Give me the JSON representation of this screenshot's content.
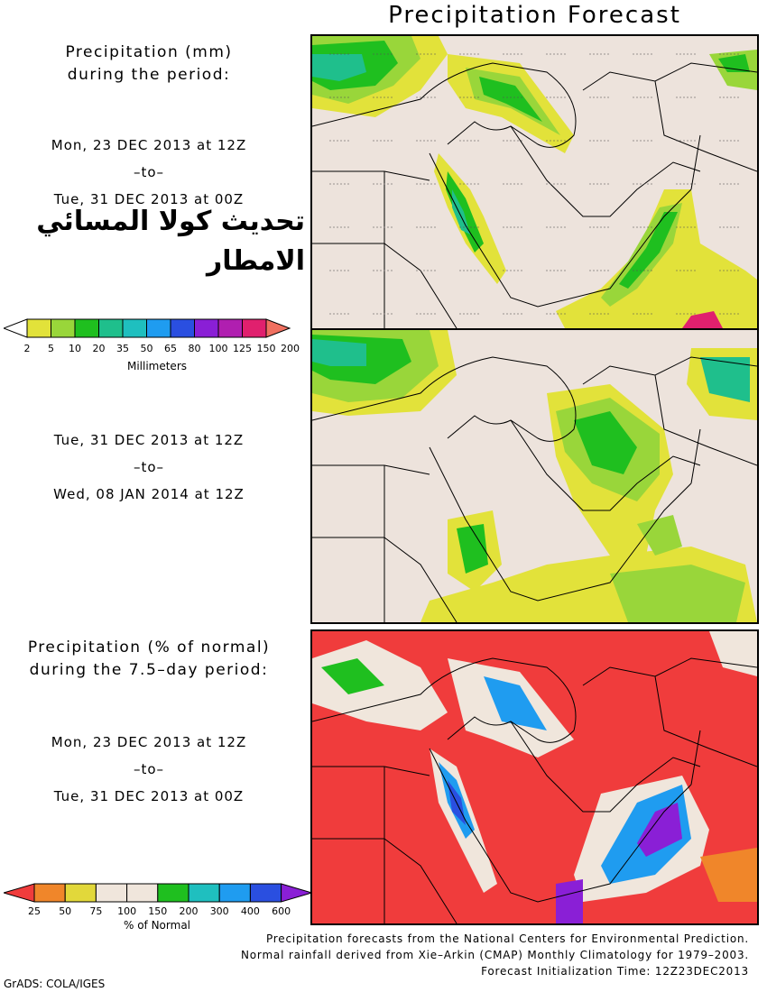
{
  "title": "Precipitation Forecast",
  "left": {
    "amount_heading_1": "Precipitation (mm)",
    "amount_heading_2": "during the period:",
    "period1": {
      "from": "Mon, 23 DEC 2013 at 12Z",
      "sep": "–to–",
      "to": "Tue, 31 DEC 2013 at 00Z"
    },
    "arabic_line1": "تحديث كولا المسائي",
    "arabic_line2": "الامطار",
    "period2": {
      "from": "Tue, 31 DEC 2013 at 12Z",
      "sep": "–to–",
      "to": "Wed, 08 JAN 2014 at 12Z"
    },
    "pct_heading_1": "Precipitation (% of normal)",
    "pct_heading_2": "during the 7.5–day period:",
    "period3": {
      "from": "Mon, 23 DEC 2013 at 12Z",
      "sep": "–to–",
      "to": "Tue, 31 DEC 2013 at 00Z"
    }
  },
  "legend_mm": {
    "unit": "Millimeters",
    "labels": [
      "2",
      "5",
      "10",
      "20",
      "35",
      "50",
      "65",
      "80",
      "100",
      "125",
      "150",
      "200"
    ],
    "colors": [
      "#ffffff",
      "#e2e23a",
      "#99d63a",
      "#1fbf1f",
      "#1fbf8c",
      "#1fbfbf",
      "#1f9cf0",
      "#2a4fe0",
      "#8a1fd6",
      "#b01fb0",
      "#e0206e",
      "#f07060"
    ]
  },
  "legend_pct": {
    "unit": "% of Normal",
    "labels": [
      "25",
      "50",
      "75",
      "100",
      "150",
      "200",
      "300",
      "400",
      "600"
    ],
    "colors": [
      "#f03c3c",
      "#f0862a",
      "#e2d83a",
      "#f0e6dc",
      "#f0e6dc",
      "#1fbf1f",
      "#1fbfbf",
      "#1f9cf0",
      "#2a4fe0",
      "#8a1fd6"
    ]
  },
  "map_colors": {
    "land": "#ede3dc",
    "light_green": "#99d63a",
    "yellow": "#e2e23a",
    "green": "#1fbf1f",
    "teal": "#1fbf8c",
    "cyan": "#1fbfbf",
    "blue": "#1f9cf0",
    "red": "#f03c3c",
    "orange": "#f0862a",
    "purple": "#8a1fd6"
  },
  "footer": {
    "line1": "Precipitation forecasts from the National Centers for Environmental Prediction.",
    "line2": "Normal rainfall derived from Xie–Arkin (CMAP) Monthly Climatology for 1979–2003.",
    "line3": "Forecast Initialization Time: 12Z23DEC2013",
    "credit": "GrADS: COLA/IGES"
  }
}
